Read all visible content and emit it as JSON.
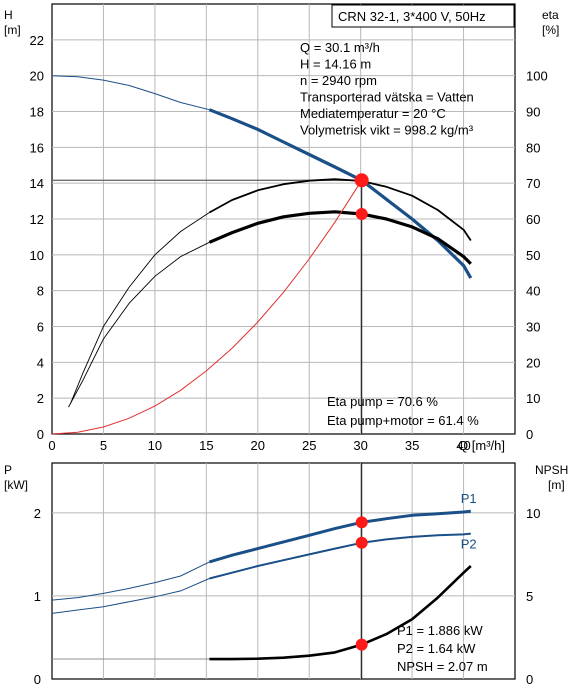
{
  "chart_data": [
    {
      "type": "line",
      "title": "CRN 32-1, 3*400 V, 50Hz",
      "ylabel": "H",
      "yunit": "[m]",
      "y2label": "eta",
      "y2unit": "[%]",
      "xlabel": "Q [m³/h]",
      "xlim": [
        0,
        45
      ],
      "ylim": [
        0,
        24
      ],
      "y2lim": [
        0,
        120
      ],
      "xticks": [
        0,
        5,
        10,
        15,
        20,
        25,
        30,
        35,
        40
      ],
      "yticks": [
        0,
        2,
        4,
        6,
        8,
        10,
        12,
        14,
        16,
        18,
        20,
        22
      ],
      "y2ticks": [
        0,
        10,
        20,
        30,
        40,
        50,
        60,
        70,
        80,
        90,
        100
      ],
      "grid": true,
      "colors": {
        "head": "#1a4f87",
        "head_thin": "#2f5f97",
        "eta": "#000000",
        "power_line": "#e03030",
        "duty_point": "#ff1a1a"
      },
      "series": [
        {
          "key": "head",
          "axis": "left",
          "x": [
            0,
            2.5,
            5,
            7.5,
            10,
            12.5,
            15.3,
            17.5,
            20,
            22.5,
            25,
            27.5,
            30.1,
            32.5,
            35,
            37.5,
            40,
            40.7
          ],
          "values": [
            20.0,
            19.94,
            19.75,
            19.45,
            19.0,
            18.5,
            18.1,
            17.6,
            17.0,
            16.3,
            15.6,
            14.9,
            14.16,
            13.1,
            12.0,
            10.8,
            9.4,
            8.7
          ],
          "thick_from": 15.3
        },
        {
          "key": "eta_pump",
          "axis": "right",
          "x": [
            1.8,
            3,
            5,
            7.5,
            10,
            12.5,
            15.3,
            17.5,
            20,
            22.5,
            25,
            27.5,
            30.1,
            32.5,
            35,
            37.5,
            40,
            40.7
          ],
          "values": [
            8.5,
            17,
            30,
            41,
            50,
            56.5,
            61.8,
            65.3,
            68,
            69.7,
            70.7,
            71.1,
            70.6,
            69.0,
            66.5,
            62.5,
            57,
            54
          ],
          "thick_from": 15.3
        },
        {
          "key": "eta_total",
          "axis": "right",
          "x": [
            1.6,
            3,
            5,
            7.5,
            10,
            12.5,
            15.3,
            17.5,
            20,
            22.5,
            25,
            27.5,
            30.1,
            32.5,
            35,
            37.5,
            40,
            40.7
          ],
          "values": [
            7.5,
            15,
            26.5,
            36.5,
            44,
            49.5,
            53.5,
            56.2,
            58.8,
            60.6,
            61.6,
            62.0,
            61.4,
            60.0,
            57.8,
            54.5,
            49.5,
            47.5
          ],
          "thick_from": 15.3
        },
        {
          "key": "system_curve",
          "axis": "left",
          "x": [
            0,
            2.5,
            5,
            7.5,
            10,
            12.5,
            15,
            17.5,
            20,
            22.5,
            25,
            27.5,
            30.1
          ],
          "values": [
            0,
            0.1,
            0.39,
            0.88,
            1.56,
            2.44,
            3.52,
            4.79,
            6.25,
            7.91,
            9.77,
            11.82,
            14.16
          ],
          "color": "power_line"
        }
      ],
      "reference_line": {
        "y": 14.16,
        "x_to": 30.1
      },
      "duty_point": {
        "x": 30.1,
        "h": 14.16,
        "eta": 61.4
      },
      "annotations_top": [
        "Q = 30.1 m³/h",
        "H = 14.16 m",
        "n = 2940 rpm",
        "Transporterad vätska = Vatten",
        "Mediatemperatur = 20 °C",
        "Volymetrisk vikt = 998.2 kg/m³"
      ],
      "annotations_bottom": [
        "Eta pump = 70.6 %",
        "Eta pump+motor = 61.4 %"
      ]
    },
    {
      "type": "line",
      "ylabel": "P",
      "yunit": "[kW]",
      "y2label": "NPSH",
      "y2unit": "[m]",
      "xlim": [
        0,
        45
      ],
      "ylim": [
        0,
        2.6
      ],
      "y2lim": [
        0,
        13
      ],
      "yticks": [
        0,
        1,
        2
      ],
      "y2ticks": [
        0,
        5,
        10
      ],
      "grid": true,
      "series": [
        {
          "name": "P1",
          "axis": "left",
          "x": [
            0,
            2.5,
            5,
            7.5,
            10,
            12.5,
            15.3,
            17.5,
            20,
            22.5,
            25,
            27.5,
            30.1,
            32.5,
            35,
            37.5,
            40,
            40.7
          ],
          "values": [
            0.95,
            0.98,
            1.03,
            1.09,
            1.16,
            1.24,
            1.41,
            1.49,
            1.57,
            1.65,
            1.73,
            1.81,
            1.886,
            1.93,
            1.97,
            1.99,
            2.01,
            2.02
          ],
          "thick_from": 15.3
        },
        {
          "name": "P2",
          "axis": "left",
          "x": [
            0,
            2.5,
            5,
            7.5,
            10,
            12.5,
            15.3,
            17.5,
            20,
            22.5,
            25,
            27.5,
            30.1,
            32.5,
            35,
            37.5,
            40,
            40.7
          ],
          "values": [
            0.79,
            0.83,
            0.87,
            0.93,
            0.99,
            1.06,
            1.21,
            1.28,
            1.36,
            1.43,
            1.5,
            1.57,
            1.64,
            1.68,
            1.71,
            1.73,
            1.74,
            1.75
          ],
          "thick_from": 15.3
        },
        {
          "key": "npsh",
          "axis": "right",
          "x": [
            15.3,
            17.5,
            20,
            22.5,
            25,
            27.5,
            30.1,
            32.5,
            35,
            37.5,
            40,
            40.7
          ],
          "values": [
            1.2,
            1.2,
            1.22,
            1.28,
            1.4,
            1.6,
            2.07,
            2.7,
            3.6,
            4.9,
            6.4,
            6.8
          ]
        }
      ],
      "npsh_floor": {
        "value": 1.2,
        "x_to": 15.3
      },
      "duty_point": {
        "x": 30.1,
        "p1": 1.886,
        "p2": 1.64,
        "npsh": 2.07
      },
      "annotations": [
        "P1 = 1.886 kW",
        "P2 = 1.64 kW",
        "NPSH = 2.07 m"
      ]
    }
  ]
}
